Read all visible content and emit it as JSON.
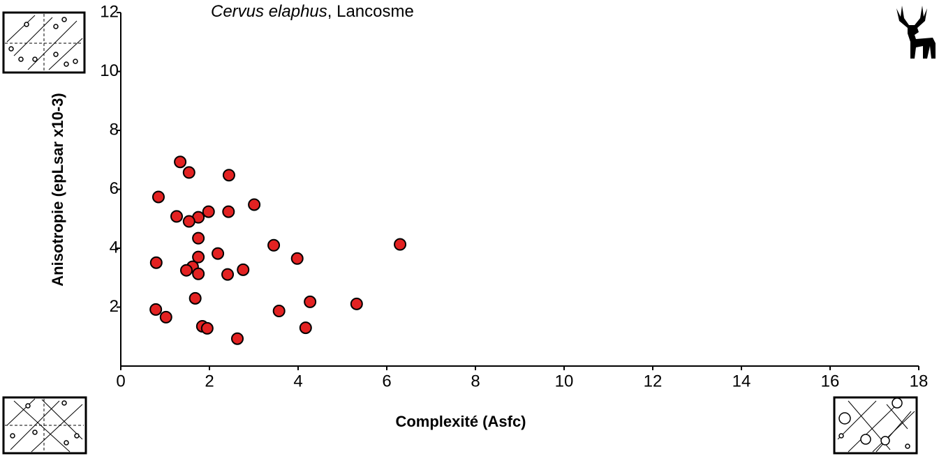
{
  "chart_data": {
    "type": "scatter",
    "title": [
      "Cervus elaphus",
      ", Lancosme"
    ],
    "x_label": "Complexité (Asfc)",
    "y_label": "Anisotropie (epLsar x10-3)",
    "color": "#e32222",
    "x": [
      1.34,
      1.54,
      2.44,
      0.85,
      3.01,
      1.98,
      2.43,
      1.26,
      1.75,
      1.54,
      1.75,
      3.45,
      6.3,
      2.19,
      3.98,
      1.75,
      0.8,
      1.62,
      1.48,
      2.76,
      1.75,
      2.41,
      1.68,
      4.27,
      5.32,
      0.79,
      3.57,
      1.02,
      1.84,
      1.95,
      4.17,
      2.63
    ],
    "values": [
      6.93,
      6.57,
      6.48,
      5.74,
      5.48,
      5.24,
      5.24,
      5.08,
      5.05,
      4.91,
      4.34,
      4.1,
      4.13,
      3.82,
      3.65,
      3.7,
      3.51,
      3.37,
      3.25,
      3.27,
      3.13,
      3.11,
      2.3,
      2.18,
      2.11,
      1.92,
      1.87,
      1.66,
      1.35,
      1.28,
      1.3,
      0.93
    ],
    "xlim": [
      0,
      18
    ],
    "xticks": [
      0,
      2,
      4,
      6,
      8,
      10,
      12,
      14,
      16,
      18
    ],
    "ylim": [
      0,
      12
    ],
    "yticks": [
      2,
      4,
      6,
      8,
      10,
      12
    ]
  }
}
